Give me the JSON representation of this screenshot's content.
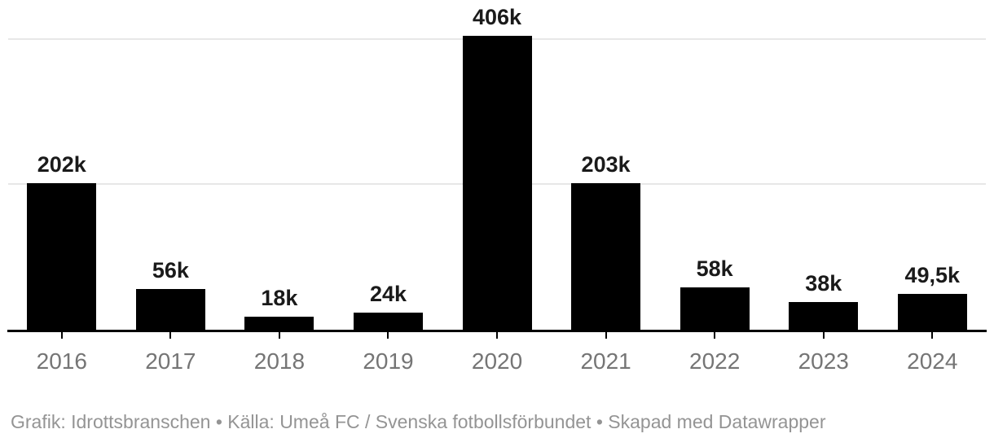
{
  "chart_data": {
    "type": "bar",
    "categories": [
      "2016",
      "2017",
      "2018",
      "2019",
      "2020",
      "2021",
      "2022",
      "2023",
      "2024"
    ],
    "values": [
      202,
      56,
      18,
      24,
      406,
      203,
      58,
      38,
      49.5
    ],
    "value_labels": [
      "202k",
      "56k",
      "18k",
      "24k",
      "406k",
      "203k",
      "58k",
      "38k",
      "49,5k"
    ],
    "value_unit": "thousands",
    "title": "",
    "xlabel": "",
    "ylabel": "",
    "ylim": [
      0,
      406
    ],
    "gridline_values": [
      200,
      400
    ],
    "grid": "horizontal",
    "legend_position": "none",
    "bar_color": "#000000"
  },
  "footer": {
    "text": "Grafik: Idrottsbranschen • Källa: Umeå FC / Svenska fotbollsförbundet • Skapad med Datawrapper"
  },
  "colors": {
    "background": "#ffffff",
    "bar": "#000000",
    "value_label": "#1a1a1a",
    "axis_label": "#757575",
    "gridline": "#e7e7e7",
    "axis_line": "#000000",
    "footer_text": "#949494"
  }
}
